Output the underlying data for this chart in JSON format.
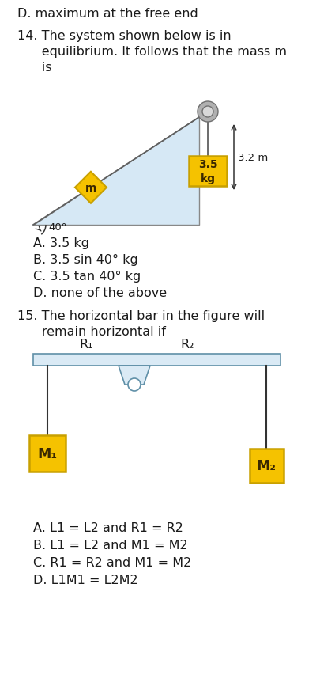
{
  "bg_color": "#ffffff",
  "text_color": "#1a1a1a",
  "gold_color": "#F5C200",
  "gold_border": "#C8A000",
  "light_blue_tri": "#d6e8f5",
  "light_blue_bar": "#daeaf5",
  "d_label": "D. maximum at the free end",
  "q14_line1": "14. The system shown below is in",
  "q14_line2": "      equilibrium. It follows that the mass m",
  "q14_line3": "      is",
  "q14_answers": [
    "A. 3.5 kg",
    "B. 3.5 sin 40° kg",
    "C. 3.5 tan 40° kg",
    "D. none of the above"
  ],
  "q15_line1": "15. The horizontal bar in the figure will",
  "q15_line2": "      remain horizontal if",
  "q15_answers": [
    "A. L1 = L2 and R1 = R2",
    "B. L1 = L2 and M1 = M2",
    "C. R1 = R2 and M1 = M2",
    "D. L1M1 = L2M2"
  ],
  "mass_label": "3.5\nkg",
  "rope_length": "3.2 m",
  "angle_label": "40°",
  "m_label": "m",
  "M1_label": "M₁",
  "M2_label": "M₂",
  "R1_label": "R₁",
  "R2_label": "R₂",
  "fontsize_main": 11.5,
  "fontsize_diagram": 9.5
}
